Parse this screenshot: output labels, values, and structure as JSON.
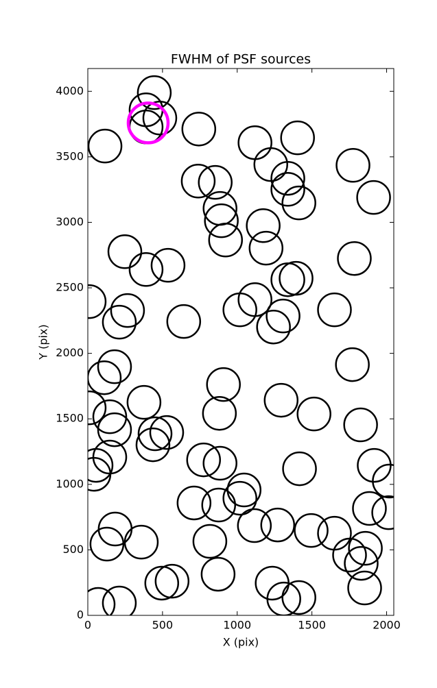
{
  "chart_data": {
    "type": "scatter",
    "title": "FWHM of PSF sources",
    "x_label": "X (pix)",
    "y_label": "Y (pix)",
    "xlim": [
      0,
      2048
    ],
    "ylim": [
      0,
      4174
    ],
    "xticks": [
      0,
      500,
      1000,
      1500,
      2000
    ],
    "yticks": [
      0,
      500,
      1000,
      1500,
      2000,
      2500,
      3000,
      3500,
      4000
    ],
    "series": [
      {
        "color": "#000000",
        "x": [
          445,
          390,
          482,
          390,
          115,
          743,
          1119,
          1404,
          1225,
          1339,
          1339,
          1413,
          1775,
          1913,
          739,
          853,
          885,
          894,
          922,
          1174,
          1193,
          248,
          390,
          537,
          1784,
          1339,
          1394,
          1119,
          1018,
          1307,
          1243,
          1651,
          9,
          266,
          211,
          642,
          179,
          110,
          1771,
          908,
          376,
          881,
          1294,
          1514,
          1826,
          9,
          147,
          179,
          450,
          528,
          436,
          147,
          55,
          41,
          775,
          885,
          1417,
          1917,
          2018,
          2014,
          1046,
          1018,
          711,
          876,
          1115,
          1271,
          1495,
          1651,
          1885,
          1752,
          1858,
          1830,
          1853,
          183,
          128,
          358,
          817,
          872,
          495,
          564,
          1234,
          1312,
          1413,
          69,
          211
        ],
        "values": [
          3990,
          3859,
          3796,
          3728,
          3582,
          3712,
          3608,
          3645,
          3441,
          3336,
          3252,
          3148,
          3435,
          3190,
          3315,
          3305,
          3106,
          3012,
          2865,
          2975,
          2803,
          2776,
          2640,
          2672,
          2724,
          2562,
          2573,
          2410,
          2332,
          2285,
          2201,
          2332,
          2395,
          2327,
          2238,
          2243,
          1898,
          1814,
          1914,
          1762,
          1626,
          1542,
          1642,
          1537,
          1454,
          1584,
          1516,
          1417,
          1386,
          1396,
          1302,
          1208,
          1145,
          1077,
          1187,
          1161,
          1119,
          1145,
          1025,
          784,
          957,
          894,
          858,
          842,
          685,
          690,
          648,
          627,
          816,
          460,
          512,
          397,
          209,
          659,
          544,
          559,
          565,
          314,
          246,
          261,
          246,
          125,
          136,
          84,
          94
        ]
      },
      {
        "color": "#ff00ff",
        "x": [
          404
        ],
        "values": [
          3759
        ]
      }
    ]
  }
}
